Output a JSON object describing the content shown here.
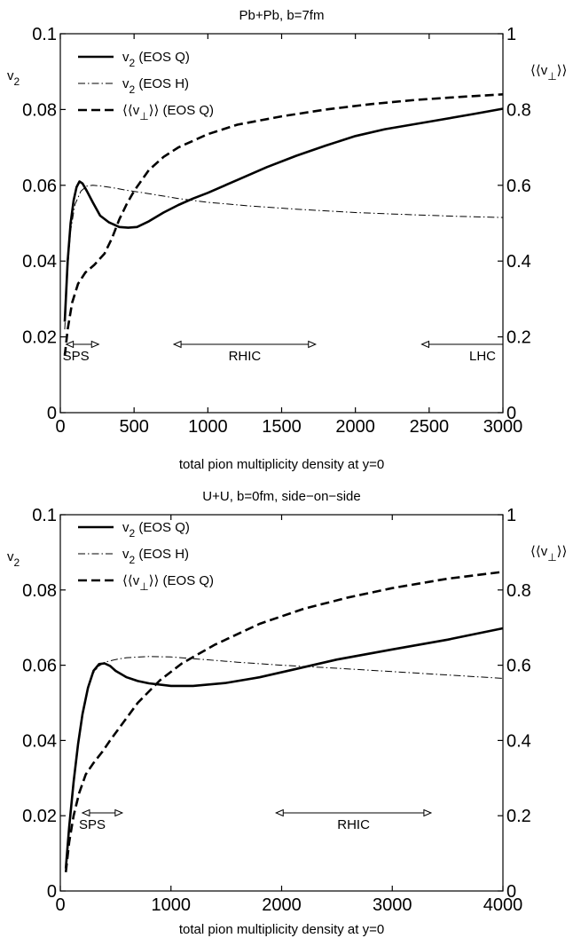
{
  "chart_data": [
    {
      "type": "line",
      "title": "Pb+Pb, b=7fm",
      "xlabel": "total pion multiplicity density at y=0",
      "ylabel_left": "v2",
      "ylabel_right": "⟨⟨v⊥⟩⟩",
      "xlim": [
        0,
        3000
      ],
      "ylim_left": [
        0,
        0.1
      ],
      "ylim_right": [
        0,
        1
      ],
      "x_ticks": [
        "0",
        "500",
        "1000",
        "1500",
        "2000",
        "2500",
        "3000"
      ],
      "y_ticks_left": [
        "0",
        "0.02",
        "0.04",
        "0.06",
        "0.08",
        "0.1"
      ],
      "y_ticks_right": [
        "0",
        "0.2",
        "0.4",
        "0.6",
        "0.8",
        "1"
      ],
      "grid": false,
      "legend_position": "top-left",
      "series": [
        {
          "name": "v2 (EOS Q)",
          "axis": "left",
          "style": "solid",
          "x": [
            30,
            50,
            70,
            90,
            110,
            130,
            150,
            180,
            220,
            270,
            330,
            400,
            460,
            520,
            600,
            700,
            800,
            900,
            1000,
            1200,
            1400,
            1600,
            1800,
            2000,
            2200,
            2500,
            2800,
            3000
          ],
          "y": [
            0.024,
            0.04,
            0.05,
            0.056,
            0.0595,
            0.061,
            0.0605,
            0.0585,
            0.0555,
            0.052,
            0.0502,
            0.049,
            0.0488,
            0.049,
            0.0505,
            0.0528,
            0.0548,
            0.0565,
            0.058,
            0.0614,
            0.0648,
            0.0678,
            0.0705,
            0.073,
            0.0748,
            0.0768,
            0.0788,
            0.0802
          ]
        },
        {
          "name": "v2 (EOS H)",
          "axis": "left",
          "style": "dashdot",
          "x": [
            30,
            50,
            70,
            100,
            140,
            180,
            220,
            280,
            350,
            450,
            600,
            800,
            1000,
            1300,
            1600,
            2000,
            2400,
            2700,
            3000
          ],
          "y": [
            0.022,
            0.038,
            0.048,
            0.055,
            0.0585,
            0.0598,
            0.06,
            0.0598,
            0.0594,
            0.0587,
            0.0578,
            0.0565,
            0.0555,
            0.0545,
            0.0537,
            0.0528,
            0.0522,
            0.0518,
            0.0515
          ]
        },
        {
          "name": "⟨⟨v⊥⟩⟩ (EOS Q)",
          "axis": "right",
          "style": "dashed",
          "x": [
            30,
            50,
            80,
            120,
            170,
            230,
            300,
            350,
            400,
            450,
            500,
            600,
            700,
            800,
            1000,
            1200,
            1500,
            1800,
            2100,
            2400,
            2700,
            3000
          ],
          "y": [
            0.15,
            0.22,
            0.29,
            0.34,
            0.37,
            0.39,
            0.42,
            0.46,
            0.51,
            0.55,
            0.585,
            0.64,
            0.675,
            0.7,
            0.735,
            0.76,
            0.782,
            0.8,
            0.814,
            0.825,
            0.833,
            0.84
          ]
        }
      ],
      "annotations": [
        {
          "text": "SPS",
          "range": [
            40,
            260
          ]
        },
        {
          "text": "RHIC",
          "range": [
            770,
            1730
          ]
        },
        {
          "text": "LHC",
          "range": [
            2450,
            3000
          ]
        }
      ]
    },
    {
      "type": "line",
      "title": "U+U, b=0fm, side−on−side",
      "xlabel": "total pion multiplicity density at y=0",
      "ylabel_left": "v2",
      "ylabel_right": "⟨⟨v⊥⟩⟩",
      "xlim": [
        0,
        4000
      ],
      "ylim_left": [
        0,
        0.1
      ],
      "ylim_right": [
        0,
        1
      ],
      "x_ticks": [
        "0",
        "1000",
        "2000",
        "3000",
        "4000"
      ],
      "y_ticks_left": [
        "0",
        "0.02",
        "0.04",
        "0.06",
        "0.08",
        "0.1"
      ],
      "y_ticks_right": [
        "0",
        "0.2",
        "0.4",
        "0.6",
        "0.8",
        "1"
      ],
      "grid": false,
      "legend_position": "top-left",
      "series": [
        {
          "name": "v2 (EOS Q)",
          "axis": "left",
          "style": "solid",
          "x": [
            50,
            80,
            120,
            160,
            200,
            250,
            300,
            350,
            400,
            450,
            500,
            600,
            700,
            800,
            1000,
            1200,
            1500,
            1800,
            2100,
            2500,
            3000,
            3500,
            4000
          ],
          "y": [
            0.006,
            0.017,
            0.029,
            0.039,
            0.047,
            0.054,
            0.0585,
            0.0603,
            0.0605,
            0.0598,
            0.0585,
            0.0568,
            0.0558,
            0.0552,
            0.0545,
            0.0545,
            0.0553,
            0.0568,
            0.0588,
            0.0615,
            0.0642,
            0.0668,
            0.0698
          ]
        },
        {
          "name": "v2 (EOS H)",
          "axis": "left",
          "style": "dashdot",
          "x": [
            50,
            80,
            120,
            160,
            200,
            250,
            300,
            350,
            400,
            500,
            600,
            800,
            1000,
            1300,
            1600,
            2000,
            2500,
            3000,
            3500,
            4000
          ],
          "y": [
            0.006,
            0.017,
            0.029,
            0.039,
            0.047,
            0.054,
            0.058,
            0.0598,
            0.0608,
            0.0615,
            0.062,
            0.0623,
            0.0622,
            0.0615,
            0.0608,
            0.06,
            0.0592,
            0.0583,
            0.0574,
            0.0565
          ]
        },
        {
          "name": "⟨⟨v⊥⟩⟩ (EOS Q)",
          "axis": "right",
          "style": "dashed",
          "x": [
            50,
            80,
            120,
            170,
            230,
            300,
            380,
            450,
            550,
            700,
            900,
            1100,
            1400,
            1800,
            2200,
            2600,
            3000,
            3500,
            4000
          ],
          "y": [
            0.05,
            0.13,
            0.2,
            0.26,
            0.31,
            0.34,
            0.37,
            0.4,
            0.44,
            0.5,
            0.56,
            0.605,
            0.655,
            0.71,
            0.75,
            0.78,
            0.805,
            0.83,
            0.848
          ]
        }
      ],
      "annotations": [
        {
          "text": "SPS",
          "range": [
            200,
            560
          ]
        },
        {
          "text": "RHIC",
          "range": [
            1950,
            3350
          ]
        }
      ]
    }
  ]
}
